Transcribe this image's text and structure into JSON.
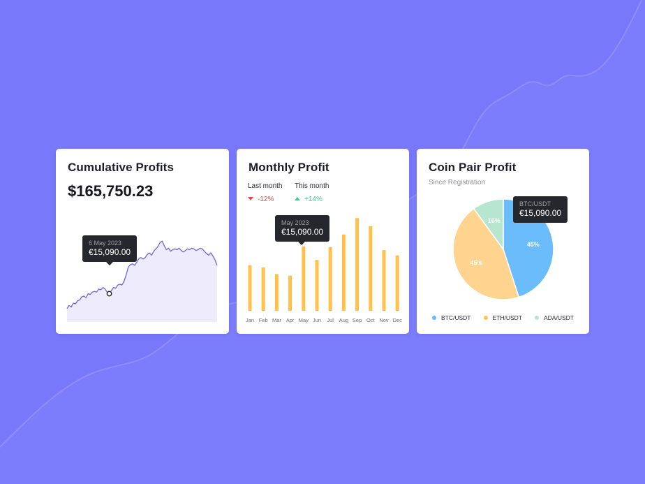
{
  "colors": {
    "background": "#7878fb",
    "area_fill": "#eeecfc",
    "area_line": "#6d66d9",
    "bar": "#ffc14d",
    "btc": "#6bbcfb",
    "eth": "#ffd48e",
    "ada": "#b6e6cf"
  },
  "cumulative": {
    "title": "Cumulative Profits",
    "value": "$165,750.23",
    "tooltip": {
      "label": "6 May 2023",
      "value": "€15,090.00"
    }
  },
  "monthly": {
    "title": "Monthly Profit",
    "last_month": {
      "label": "Last month",
      "delta": "-12%"
    },
    "this_month": {
      "label": "This month",
      "delta": "+14%"
    },
    "tooltip": {
      "label": "May 2023",
      "value": "€15,090.00"
    }
  },
  "coinpair": {
    "title": "Coin Pair Profit",
    "subtitle": "Since Registration",
    "tooltip": {
      "label": "BTC/USDT",
      "value": "€15,090.00"
    },
    "legend": [
      "BTC/USDT",
      "ETH/USDT",
      "ADA/USDT"
    ]
  },
  "chart_data": [
    {
      "type": "area",
      "title": "Cumulative Profits",
      "x": [
        0,
        1,
        2,
        3,
        4,
        5,
        6,
        7,
        8,
        9,
        10,
        11,
        12,
        13,
        14,
        15,
        16,
        17,
        18,
        19,
        20,
        21,
        22,
        23,
        24,
        25,
        26,
        27,
        28,
        29,
        30,
        31,
        32,
        33,
        34,
        35,
        36,
        37,
        38,
        39,
        40,
        41,
        42,
        43,
        44,
        45,
        46,
        47,
        48,
        49,
        50,
        51,
        52,
        53,
        54,
        55,
        56,
        57,
        58,
        59,
        60,
        61,
        62,
        63,
        64,
        65,
        66,
        67,
        68,
        69,
        70,
        71
      ],
      "values": [
        17,
        21,
        19,
        24,
        23,
        27,
        28,
        32,
        33,
        31,
        36,
        35,
        38,
        39,
        38,
        42,
        41,
        44,
        42,
        38,
        36,
        40,
        44,
        43,
        47,
        48,
        47,
        52,
        60,
        70,
        73,
        74,
        72,
        76,
        81,
        82,
        80,
        82,
        86,
        88,
        85,
        90,
        93,
        96,
        101,
        103,
        97,
        92,
        94,
        90,
        92,
        93,
        92,
        94,
        91,
        89,
        91,
        93,
        92,
        94,
        93,
        91,
        92,
        94,
        93,
        90,
        87,
        85,
        88,
        84,
        79,
        72
      ],
      "ylim": [
        0,
        160
      ],
      "highlight_index": 20,
      "xlabel": "",
      "ylabel": ""
    },
    {
      "type": "bar",
      "title": "Monthly Profit",
      "categories": [
        "Jan",
        "Feb",
        "Mar",
        "Apr",
        "May",
        "Jun",
        "Jul",
        "Aug",
        "Sep",
        "Oct",
        "Nov",
        "Dec"
      ],
      "values": [
        61,
        58,
        49,
        47,
        86,
        68,
        85,
        102,
        124,
        113,
        81,
        74
      ],
      "ylim": [
        0,
        140
      ],
      "highlight": "May",
      "xlabel": "",
      "ylabel": ""
    },
    {
      "type": "pie",
      "title": "Coin Pair Profit",
      "labels": [
        "BTC/USDT",
        "ETH/USDT",
        "ADA/USDT"
      ],
      "values": [
        45,
        45,
        10
      ],
      "value_labels": [
        "45%",
        "45%",
        "10%"
      ]
    }
  ]
}
